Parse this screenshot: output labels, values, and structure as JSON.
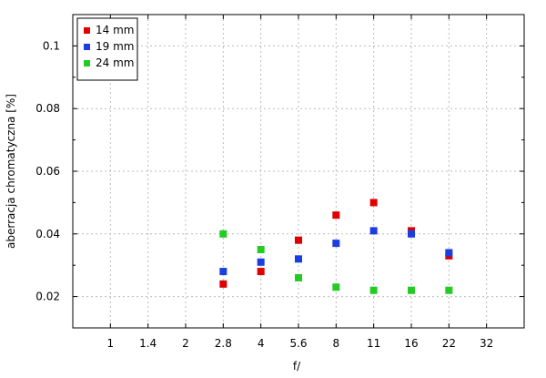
{
  "chart_data": {
    "type": "scatter",
    "title": "",
    "xlabel": "f/",
    "ylabel": "aberracja chromatyczna [%]",
    "x_ticks": [
      "1",
      "1.4",
      "2",
      "2.8",
      "4",
      "5.6",
      "8",
      "11",
      "16",
      "22",
      "32"
    ],
    "y_ticks": [
      "0.02",
      "0.04",
      "0.06",
      "0.08",
      "0.1"
    ],
    "y_tick_values": [
      0.02,
      0.04,
      0.06,
      0.08,
      0.1
    ],
    "ylim": [
      0.01,
      0.11
    ],
    "grid": true,
    "legend_position": "top-left",
    "series": [
      {
        "name": "14 mm",
        "color": "#e00000",
        "points": [
          {
            "x": "2.8",
            "y": 0.024
          },
          {
            "x": "4",
            "y": 0.028
          },
          {
            "x": "5.6",
            "y": 0.038
          },
          {
            "x": "8",
            "y": 0.046
          },
          {
            "x": "11",
            "y": 0.05
          },
          {
            "x": "16",
            "y": 0.041
          },
          {
            "x": "22",
            "y": 0.033
          }
        ]
      },
      {
        "name": "19 mm",
        "color": "#1a3ee0",
        "points": [
          {
            "x": "2.8",
            "y": 0.028
          },
          {
            "x": "4",
            "y": 0.031
          },
          {
            "x": "5.6",
            "y": 0.032
          },
          {
            "x": "8",
            "y": 0.037
          },
          {
            "x": "11",
            "y": 0.041
          },
          {
            "x": "16",
            "y": 0.04
          },
          {
            "x": "22",
            "y": 0.034
          }
        ]
      },
      {
        "name": "24 mm",
        "color": "#22cc22",
        "points": [
          {
            "x": "2.8",
            "y": 0.04
          },
          {
            "x": "4",
            "y": 0.035
          },
          {
            "x": "5.6",
            "y": 0.026
          },
          {
            "x": "8",
            "y": 0.023
          },
          {
            "x": "11",
            "y": 0.022
          },
          {
            "x": "16",
            "y": 0.022
          },
          {
            "x": "22",
            "y": 0.022
          }
        ]
      }
    ]
  }
}
